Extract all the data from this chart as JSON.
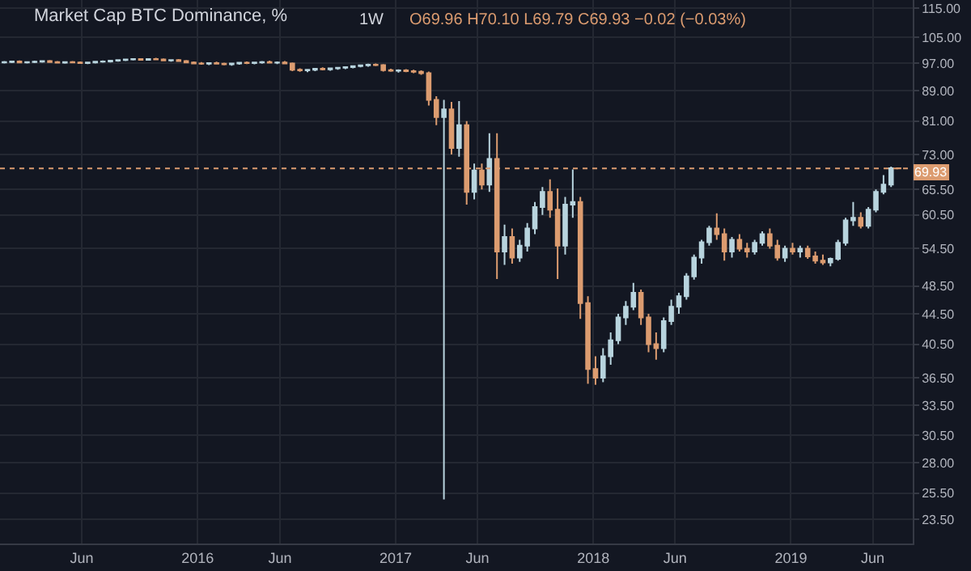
{
  "chart_data": {
    "type": "candlestick",
    "title": "Market Cap BTC Dominance, %",
    "annotations": [
      "1W",
      "O69.96 H70.10 L69.79 C69.93 −0.02 (−0.03%)"
    ],
    "x": [
      "2015-01-09",
      "2015-01-23",
      "2015-02-06",
      "2015-02-20",
      "2015-03-06",
      "2015-03-20",
      "2015-04-03",
      "2015-04-17",
      "2015-05-01",
      "2015-05-15",
      "2015-05-29",
      "2015-06-12",
      "2015-06-26",
      "2015-07-10",
      "2015-07-24",
      "2015-08-07",
      "2015-08-21",
      "2015-09-04",
      "2015-09-18",
      "2015-10-02",
      "2015-10-16",
      "2015-10-30",
      "2015-11-13",
      "2015-11-27",
      "2015-12-11",
      "2015-12-25",
      "2016-01-08",
      "2016-01-22",
      "2016-02-05",
      "2016-02-19",
      "2016-03-04",
      "2016-03-18",
      "2016-04-01",
      "2016-04-15",
      "2016-04-29",
      "2016-05-13",
      "2016-05-27",
      "2016-06-10",
      "2016-06-24",
      "2016-07-08",
      "2016-07-22",
      "2016-08-05",
      "2016-08-19",
      "2016-09-02",
      "2016-09-16",
      "2016-09-30",
      "2016-10-14",
      "2016-10-28",
      "2016-11-11",
      "2016-11-25",
      "2016-12-09",
      "2016-12-23",
      "2017-01-06",
      "2017-01-20",
      "2017-02-03",
      "2017-02-17",
      "2017-03-03",
      "2017-03-17",
      "2017-03-31",
      "2017-04-14",
      "2017-04-28",
      "2017-05-12",
      "2017-05-26",
      "2017-06-09",
      "2017-06-23",
      "2017-07-07",
      "2017-07-21",
      "2017-08-04",
      "2017-08-18",
      "2017-09-01",
      "2017-09-15",
      "2017-09-29",
      "2017-10-13",
      "2017-10-27",
      "2017-11-10",
      "2017-11-24",
      "2017-12-08",
      "2017-12-22",
      "2018-01-05",
      "2018-01-19",
      "2018-02-02",
      "2018-02-16",
      "2018-03-02",
      "2018-03-16",
      "2018-03-30",
      "2018-04-13",
      "2018-04-27",
      "2018-05-11",
      "2018-05-25",
      "2018-06-08",
      "2018-06-22",
      "2018-07-06",
      "2018-07-20",
      "2018-08-03",
      "2018-08-17",
      "2018-08-31",
      "2018-09-14",
      "2018-09-28",
      "2018-10-12",
      "2018-10-26",
      "2018-11-09",
      "2018-11-23",
      "2018-12-07",
      "2018-12-21",
      "2019-01-04",
      "2019-01-18",
      "2019-02-01",
      "2019-02-15",
      "2019-03-01",
      "2019-03-15",
      "2019-03-29",
      "2019-04-12",
      "2019-04-26",
      "2019-05-10",
      "2019-05-24",
      "2019-06-07",
      "2019-06-21",
      "2019-07-05",
      "2019-07-19"
    ],
    "ohlc": [
      [
        97.2,
        97.6,
        96.9,
        97.3
      ],
      [
        97.3,
        97.7,
        97.0,
        97.5
      ],
      [
        97.5,
        97.8,
        97.1,
        97.2
      ],
      [
        97.2,
        97.5,
        96.9,
        97.3
      ],
      [
        97.3,
        97.7,
        97.0,
        97.4
      ],
      [
        97.4,
        97.8,
        97.1,
        97.6
      ],
      [
        97.6,
        97.9,
        97.2,
        97.3
      ],
      [
        97.3,
        97.6,
        96.9,
        97.1
      ],
      [
        97.1,
        97.5,
        96.8,
        97.3
      ],
      [
        97.3,
        97.6,
        97.0,
        97.2
      ],
      [
        97.2,
        97.5,
        96.8,
        97.0
      ],
      [
        97.0,
        97.4,
        96.7,
        97.2
      ],
      [
        97.2,
        97.6,
        96.9,
        97.4
      ],
      [
        97.4,
        97.8,
        97.1,
        97.5
      ],
      [
        97.5,
        97.9,
        97.2,
        97.7
      ],
      [
        97.7,
        98.1,
        97.4,
        97.9
      ],
      [
        97.9,
        98.3,
        97.6,
        98.1
      ],
      [
        98.1,
        98.4,
        97.8,
        98.2
      ],
      [
        98.2,
        98.5,
        97.9,
        98.0
      ],
      [
        98.0,
        98.4,
        97.7,
        98.2
      ],
      [
        98.2,
        98.6,
        97.9,
        98.1
      ],
      [
        98.1,
        98.4,
        97.6,
        97.8
      ],
      [
        97.8,
        98.1,
        97.4,
        97.9
      ],
      [
        97.9,
        98.2,
        97.5,
        97.6
      ],
      [
        97.6,
        97.9,
        97.0,
        97.2
      ],
      [
        97.2,
        97.5,
        96.6,
        96.9
      ],
      [
        96.9,
        97.3,
        96.5,
        96.8
      ],
      [
        96.8,
        97.2,
        96.4,
        97.0
      ],
      [
        97.0,
        97.4,
        96.6,
        96.8
      ],
      [
        96.8,
        97.1,
        96.3,
        96.6
      ],
      [
        96.6,
        97.0,
        96.2,
        96.9
      ],
      [
        96.9,
        97.3,
        96.5,
        97.1
      ],
      [
        97.1,
        97.5,
        96.7,
        97.0
      ],
      [
        97.0,
        97.4,
        96.6,
        97.2
      ],
      [
        97.2,
        97.6,
        96.8,
        97.3
      ],
      [
        97.3,
        97.7,
        96.9,
        97.1
      ],
      [
        97.1,
        97.5,
        96.7,
        97.2
      ],
      [
        97.2,
        97.6,
        96.6,
        96.9
      ],
      [
        96.9,
        97.2,
        94.6,
        95.0
      ],
      [
        95.0,
        95.4,
        94.4,
        94.8
      ],
      [
        94.8,
        95.2,
        94.3,
        95.0
      ],
      [
        95.0,
        95.5,
        94.6,
        95.3
      ],
      [
        95.3,
        95.7,
        94.8,
        95.1
      ],
      [
        95.1,
        95.6,
        94.7,
        95.4
      ],
      [
        95.4,
        95.8,
        95.0,
        95.6
      ],
      [
        95.6,
        96.0,
        95.2,
        95.8
      ],
      [
        95.8,
        96.3,
        95.4,
        96.1
      ],
      [
        96.1,
        96.5,
        95.7,
        96.3
      ],
      [
        96.3,
        96.8,
        95.9,
        96.5
      ],
      [
        96.5,
        96.9,
        96.1,
        96.4
      ],
      [
        96.4,
        96.7,
        94.5,
        94.9
      ],
      [
        94.9,
        95.3,
        94.4,
        94.7
      ],
      [
        94.7,
        95.1,
        94.2,
        94.8
      ],
      [
        94.8,
        95.2,
        94.3,
        94.6
      ],
      [
        94.6,
        95.0,
        94.0,
        94.4
      ],
      [
        94.4,
        94.8,
        93.5,
        94.0
      ],
      [
        94.0,
        94.5,
        85.0,
        86.5
      ],
      [
        86.5,
        87.5,
        80.0,
        82.0
      ],
      [
        82.0,
        86.5,
        25.0,
        84.0
      ],
      [
        84.0,
        86.0,
        73.0,
        74.5
      ],
      [
        74.5,
        86.2,
        72.5,
        80.0
      ],
      [
        80.0,
        81.0,
        62.5,
        65.0
      ],
      [
        65.0,
        71.0,
        63.5,
        69.5
      ],
      [
        69.5,
        71.0,
        65.5,
        66.5
      ],
      [
        66.5,
        78.0,
        65.0,
        72.0
      ],
      [
        72.0,
        78.0,
        49.6,
        54.0
      ],
      [
        54.0,
        58.7,
        51.8,
        56.5
      ],
      [
        56.5,
        58.0,
        52.0,
        53.0
      ],
      [
        53.0,
        56.0,
        52.3,
        55.0
      ],
      [
        55.0,
        59.0,
        54.0,
        58.0
      ],
      [
        58.0,
        63.0,
        57.0,
        62.0
      ],
      [
        62.0,
        66.0,
        60.5,
        65.0
      ],
      [
        65.0,
        67.6,
        60.0,
        61.5
      ],
      [
        61.5,
        65.7,
        49.6,
        55.0
      ],
      [
        55.0,
        64.0,
        53.5,
        62.5
      ],
      [
        62.5,
        69.7,
        60.0,
        63.0
      ],
      [
        63.0,
        64.0,
        43.8,
        46.0
      ],
      [
        46.0,
        47.0,
        35.8,
        37.5
      ],
      [
        37.5,
        39.0,
        35.7,
        36.5
      ],
      [
        36.5,
        40.0,
        36.0,
        39.0
      ],
      [
        39.0,
        42.0,
        38.0,
        41.0
      ],
      [
        41.0,
        44.5,
        40.5,
        44.0
      ],
      [
        44.0,
        46.3,
        43.0,
        45.5
      ],
      [
        45.5,
        49.0,
        45.0,
        47.5
      ],
      [
        47.5,
        48.0,
        43.0,
        44.0
      ],
      [
        44.0,
        44.5,
        39.5,
        40.5
      ],
      [
        40.5,
        42.0,
        38.6,
        40.0
      ],
      [
        40.0,
        44.0,
        39.5,
        43.5
      ],
      [
        43.5,
        46.5,
        43.0,
        45.5
      ],
      [
        45.5,
        47.5,
        44.5,
        47.0
      ],
      [
        47.0,
        50.5,
        46.5,
        50.0
      ],
      [
        50.0,
        53.5,
        49.5,
        53.0
      ],
      [
        53.0,
        56.0,
        52.0,
        55.6
      ],
      [
        55.6,
        58.5,
        55.0,
        58.0
      ],
      [
        58.0,
        60.8,
        56.0,
        57.0
      ],
      [
        57.0,
        58.0,
        52.5,
        54.0
      ],
      [
        54.0,
        56.5,
        53.0,
        56.0
      ],
      [
        56.0,
        57.0,
        54.0,
        54.5
      ],
      [
        54.5,
        55.5,
        53.0,
        54.0
      ],
      [
        54.0,
        56.0,
        53.5,
        55.5
      ],
      [
        55.5,
        57.5,
        55.0,
        57.0
      ],
      [
        57.0,
        58.0,
        54.5,
        55.0
      ],
      [
        55.0,
        56.0,
        52.5,
        53.0
      ],
      [
        53.0,
        55.0,
        52.3,
        54.5
      ],
      [
        54.5,
        55.5,
        53.5,
        54.0
      ],
      [
        54.0,
        55.0,
        53.0,
        54.5
      ],
      [
        54.5,
        55.0,
        52.8,
        53.2
      ],
      [
        53.2,
        54.0,
        52.0,
        52.5
      ],
      [
        52.5,
        53.5,
        51.8,
        52.2
      ],
      [
        52.2,
        53.0,
        51.6,
        52.8
      ],
      [
        52.8,
        56.0,
        52.5,
        55.5
      ],
      [
        55.5,
        60.0,
        55.0,
        59.5
      ],
      [
        59.5,
        63.0,
        58.5,
        60.0
      ],
      [
        60.0,
        61.0,
        58.0,
        58.5
      ],
      [
        58.5,
        62.0,
        58.0,
        61.5
      ],
      [
        61.5,
        65.5,
        61.0,
        65.0
      ],
      [
        65.0,
        68.5,
        64.5,
        66.5
      ],
      [
        66.5,
        70.3,
        66.0,
        69.96
      ],
      [
        69.96,
        70.1,
        69.79,
        69.93
      ]
    ],
    "colors": [
      "#b8d4de",
      "#b8d4de",
      "#dc9c70",
      "#b8d4de",
      "#b8d4de",
      "#b8d4de",
      "#dc9c70",
      "#dc9c70",
      "#b8d4de",
      "#dc9c70",
      "#dc9c70",
      "#b8d4de",
      "#b8d4de",
      "#b8d4de",
      "#b8d4de",
      "#b8d4de",
      "#b8d4de",
      "#b8d4de",
      "#dc9c70",
      "#b8d4de",
      "#dc9c70",
      "#dc9c70",
      "#b8d4de",
      "#dc9c70",
      "#dc9c70",
      "#dc9c70",
      "#dc9c70",
      "#b8d4de",
      "#dc9c70",
      "#dc9c70",
      "#b8d4de",
      "#b8d4de",
      "#dc9c70",
      "#b8d4de",
      "#b8d4de",
      "#dc9c70",
      "#b8d4de",
      "#dc9c70",
      "#dc9c70",
      "#dc9c70",
      "#b8d4de",
      "#b8d4de",
      "#dc9c70",
      "#b8d4de",
      "#b8d4de",
      "#b8d4de",
      "#b8d4de",
      "#b8d4de",
      "#b8d4de",
      "#dc9c70",
      "#dc9c70",
      "#dc9c70",
      "#b8d4de",
      "#dc9c70",
      "#dc9c70",
      "#dc9c70",
      "#dc9c70",
      "#dc9c70",
      "#b8d4de",
      "#dc9c70",
      "#b8d4de",
      "#dc9c70",
      "#b8d4de",
      "#dc9c70",
      "#b8d4de",
      "#dc9c70",
      "#b8d4de",
      "#dc9c70",
      "#b8d4de",
      "#b8d4de",
      "#b8d4de",
      "#b8d4de",
      "#dc9c70",
      "#dc9c70",
      "#b8d4de",
      "#b8d4de",
      "#dc9c70",
      "#dc9c70",
      "#dc9c70",
      "#b8d4de",
      "#b8d4de",
      "#b8d4de",
      "#b8d4de",
      "#b8d4de",
      "#dc9c70",
      "#dc9c70",
      "#dc9c70",
      "#b8d4de",
      "#b8d4de",
      "#b8d4de",
      "#b8d4de",
      "#b8d4de",
      "#b8d4de",
      "#b8d4de",
      "#dc9c70",
      "#dc9c70",
      "#b8d4de",
      "#dc9c70",
      "#dc9c70",
      "#b8d4de",
      "#b8d4de",
      "#dc9c70",
      "#dc9c70",
      "#b8d4de",
      "#dc9c70",
      "#b8d4de",
      "#dc9c70",
      "#dc9c70",
      "#dc9c70",
      "#b8d4de",
      "#b8d4de",
      "#b8d4de",
      "#b8d4de",
      "#dc9c70",
      "#b8d4de",
      "#b8d4de",
      "#b8d4de",
      "#b8d4de",
      "#dc9c70"
    ],
    "log": "y",
    "ylim": [
      21.8,
      118
    ],
    "yticks": [
      {
        "value": 23.5,
        "label": "23.50"
      },
      {
        "value": 25.5,
        "label": "25.50"
      },
      {
        "value": 28,
        "label": "28.00"
      },
      {
        "value": 30.5,
        "label": "30.50"
      },
      {
        "value": 33.5,
        "label": "33.50"
      },
      {
        "value": 36.5,
        "label": "36.50"
      },
      {
        "value": 40.5,
        "label": "40.50"
      },
      {
        "value": 44.5,
        "label": "44.50"
      },
      {
        "value": 48.5,
        "label": "48.50"
      },
      {
        "value": 54.5,
        "label": "54.50"
      },
      {
        "value": 60.5,
        "label": "60.50"
      },
      {
        "value": 65.5,
        "label": "65.50"
      },
      {
        "value": 73,
        "label": "73.00"
      },
      {
        "value": 81,
        "label": "81.00"
      },
      {
        "value": 89,
        "label": "89.00"
      },
      {
        "value": 97,
        "label": "97.00"
      },
      {
        "value": 105,
        "label": "105.00"
      },
      {
        "value": 115,
        "label": "115.00"
      }
    ],
    "xlim": [
      "2015-01-01",
      "2019-08-14"
    ],
    "xticks": [
      {
        "value": "2015-06-01",
        "label": "Jun"
      },
      {
        "value": "2016-01-01",
        "label": "2016"
      },
      {
        "value": "2016-06-01",
        "label": "Jun"
      },
      {
        "value": "2017-01-01",
        "label": "2017"
      },
      {
        "value": "2017-06-01",
        "label": "Jun"
      },
      {
        "value": "2018-01-01",
        "label": "2018"
      },
      {
        "value": "2018-06-01",
        "label": "Jun"
      },
      {
        "value": "2019-01-01",
        "label": "2019"
      },
      {
        "value": "2019-06-01",
        "label": "Jun"
      }
    ],
    "ref_lines": [
      {
        "axis": "y",
        "value": 69.93,
        "label": "69.93",
        "color": "#dc9c70",
        "line_style": "dotted"
      }
    ],
    "grid": true
  }
}
